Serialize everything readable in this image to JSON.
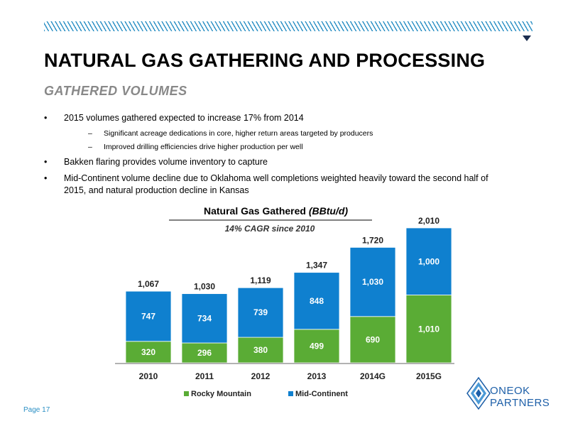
{
  "slide": {
    "title": "NATURAL GAS GATHERING AND PROCESSING",
    "subtitle": "GATHERED VOLUMES",
    "bullets": [
      {
        "text": "2015 volumes gathered expected to increase 17% from 2014",
        "subs": [
          "Significant acreage dedications in core, higher return areas targeted by producers",
          "Improved drilling efficiencies drive higher production per well"
        ]
      },
      {
        "text": "Bakken flaring provides volume inventory to capture",
        "subs": []
      },
      {
        "text": "Mid-Continent volume decline due to Oklahoma well completions weighted heavily toward the second half of 2015, and natural production decline in Kansas",
        "subs": []
      }
    ],
    "bullet_char": "•",
    "dash_char": "–",
    "page": "Page 17",
    "logo": {
      "line1": "ONEOK",
      "line2": "PARTNERS"
    },
    "accent_color": "#2a8fc4"
  },
  "chart_data": {
    "type": "bar",
    "stacked": true,
    "title": "Natural Gas Gathered",
    "title_units": "(BBtu/d)",
    "subtitle": "14% CAGR since 2010",
    "categories": [
      "2010",
      "2011",
      "2012",
      "2013",
      "2014G",
      "2015G"
    ],
    "series": [
      {
        "name": "Rocky Mountain",
        "color": "#5aac35",
        "values": [
          320,
          296,
          380,
          499,
          690,
          1010
        ],
        "labels": [
          "320",
          "296",
          "380",
          "499",
          "690",
          "1,010"
        ]
      },
      {
        "name": "Mid-Continent",
        "color": "#0f80cf",
        "values": [
          747,
          734,
          739,
          848,
          1030,
          1000
        ],
        "labels": [
          "747",
          "734",
          "739",
          "848",
          "1,030",
          "1,000"
        ]
      }
    ],
    "totals": [
      "1,067",
      "1,030",
      "1,119",
      "1,347",
      "1,720",
      "2,010"
    ],
    "ylim": [
      0,
      2010
    ],
    "legend_position": "bottom",
    "grid": false
  }
}
